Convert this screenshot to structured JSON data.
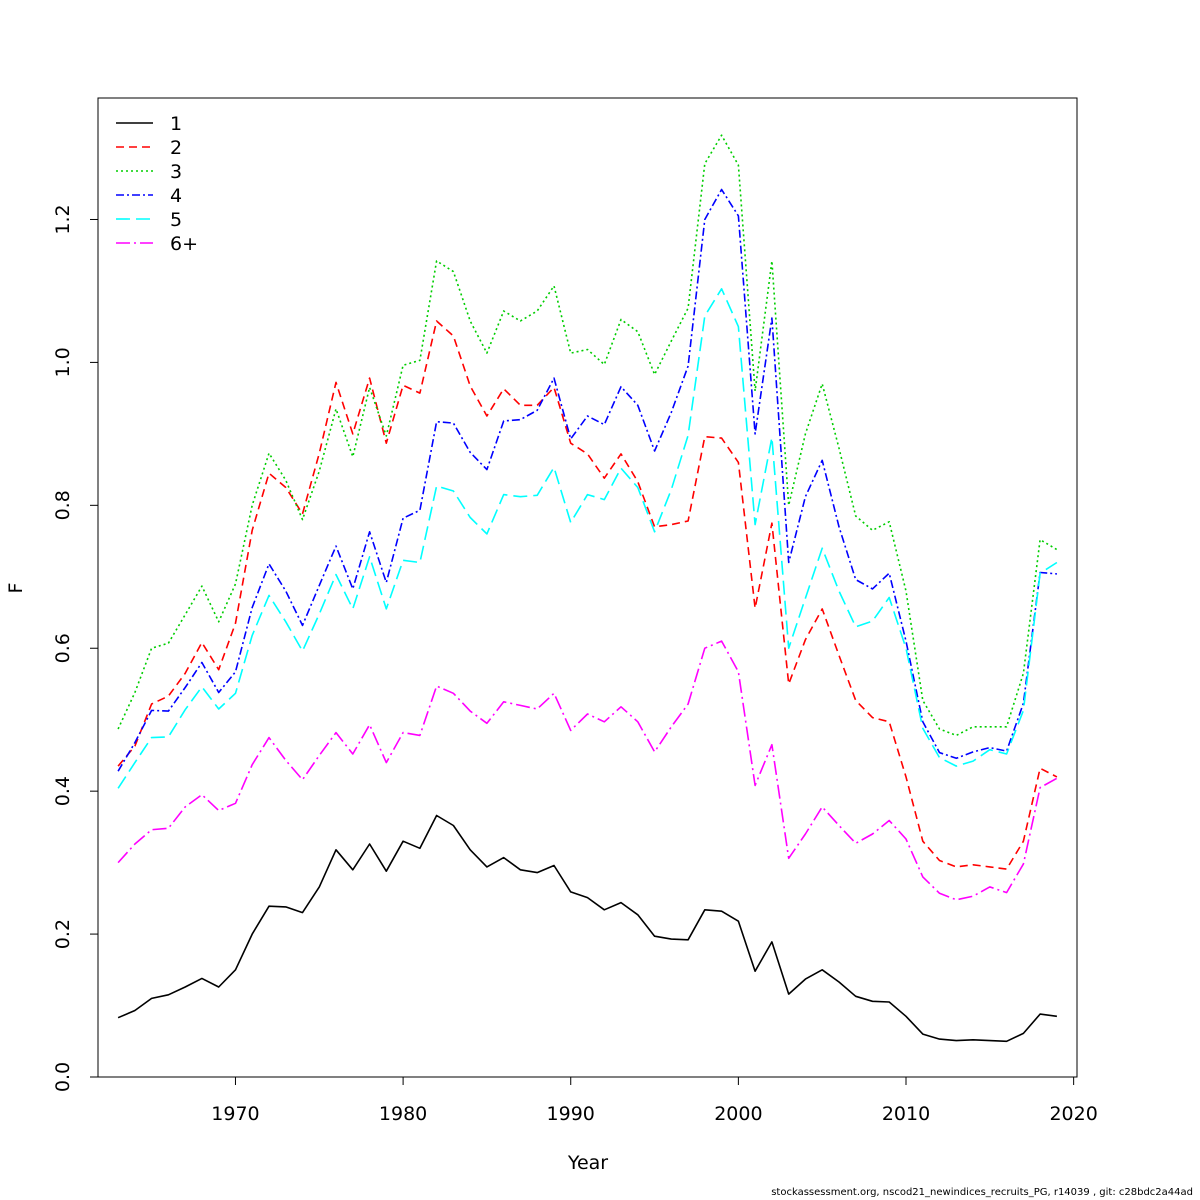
{
  "footer_note": "stockassessment.org, nscod21_newindices_recruits_PG, r14039 , git: c28bdc2a44ad",
  "chart_data": {
    "type": "line",
    "title": "",
    "xlabel": "Year",
    "ylabel": "F",
    "xlim": [
      1961.8,
      2020.2
    ],
    "ylim": [
      0,
      1.37
    ],
    "x_ticks": [
      1970,
      1980,
      1990,
      2000,
      2010,
      2020
    ],
    "y_ticks": [
      0.0,
      0.2,
      0.4,
      0.6,
      0.8,
      1.0,
      1.2
    ],
    "x_tick_labels": [
      "1970",
      "1980",
      "1990",
      "2000",
      "2010",
      "2020"
    ],
    "y_tick_labels": [
      "0.0",
      "0.2",
      "0.4",
      "0.6",
      "0.8",
      "1.0",
      "1.2"
    ],
    "grid": false,
    "legend_position": "top-left",
    "x": [
      1963,
      1964,
      1965,
      1966,
      1967,
      1968,
      1969,
      1970,
      1971,
      1972,
      1973,
      1974,
      1975,
      1976,
      1977,
      1978,
      1979,
      1980,
      1981,
      1982,
      1983,
      1984,
      1985,
      1986,
      1987,
      1988,
      1989,
      1990,
      1991,
      1992,
      1993,
      1994,
      1995,
      1996,
      1997,
      1998,
      1999,
      2000,
      2001,
      2002,
      2003,
      2004,
      2005,
      2006,
      2007,
      2008,
      2009,
      2010,
      2011,
      2012,
      2013,
      2014,
      2015,
      2016,
      2017,
      2018,
      2019
    ],
    "series": [
      {
        "name": "1",
        "color": "#000000",
        "dash": "",
        "values": [
          0.083,
          0.093,
          0.11,
          0.115,
          0.126,
          0.138,
          0.126,
          0.15,
          0.2,
          0.239,
          0.238,
          0.23,
          0.266,
          0.318,
          0.29,
          0.326,
          0.288,
          0.33,
          0.32,
          0.366,
          0.352,
          0.318,
          0.294,
          0.307,
          0.29,
          0.286,
          0.296,
          0.259,
          0.251,
          0.234,
          0.244,
          0.227,
          0.197,
          0.193,
          0.192,
          0.234,
          0.232,
          0.218,
          0.148,
          0.189,
          0.116,
          0.137,
          0.15,
          0.133,
          0.113,
          0.106,
          0.105,
          0.085,
          0.06,
          0.053,
          0.051,
          0.052,
          0.051,
          0.05,
          0.061,
          0.088,
          0.085
        ]
      },
      {
        "name": "2",
        "color": "#ff0000",
        "dash": "8,5",
        "values": [
          0.435,
          0.463,
          0.522,
          0.533,
          0.565,
          0.608,
          0.57,
          0.635,
          0.765,
          0.845,
          0.825,
          0.788,
          0.873,
          0.972,
          0.9,
          0.978,
          0.887,
          0.968,
          0.957,
          1.058,
          1.037,
          0.967,
          0.925,
          0.963,
          0.94,
          0.94,
          0.965,
          0.887,
          0.872,
          0.838,
          0.872,
          0.833,
          0.77,
          0.773,
          0.778,
          0.896,
          0.894,
          0.86,
          0.656,
          0.775,
          0.55,
          0.612,
          0.655,
          0.59,
          0.527,
          0.503,
          0.497,
          0.42,
          0.33,
          0.303,
          0.294,
          0.297,
          0.294,
          0.291,
          0.33,
          0.432,
          0.42
        ]
      },
      {
        "name": "3",
        "color": "#00cd00",
        "dash": "2,3",
        "values": [
          0.487,
          0.538,
          0.6,
          0.607,
          0.647,
          0.687,
          0.637,
          0.69,
          0.8,
          0.873,
          0.835,
          0.78,
          0.848,
          0.935,
          0.868,
          0.965,
          0.897,
          0.996,
          1.003,
          1.142,
          1.127,
          1.058,
          1.013,
          1.072,
          1.058,
          1.072,
          1.107,
          1.013,
          1.018,
          0.997,
          1.06,
          1.043,
          0.983,
          1.03,
          1.076,
          1.278,
          1.318,
          1.276,
          0.96,
          1.142,
          0.8,
          0.9,
          0.97,
          0.88,
          0.785,
          0.765,
          0.777,
          0.68,
          0.527,
          0.487,
          0.478,
          0.49,
          0.49,
          0.49,
          0.565,
          0.752,
          0.738
        ]
      },
      {
        "name": "4",
        "color": "#0000ff",
        "dash": "8,3,2,3",
        "values": [
          0.428,
          0.468,
          0.513,
          0.512,
          0.545,
          0.58,
          0.538,
          0.567,
          0.657,
          0.718,
          0.68,
          0.632,
          0.688,
          0.743,
          0.683,
          0.763,
          0.692,
          0.782,
          0.793,
          0.917,
          0.915,
          0.874,
          0.85,
          0.918,
          0.92,
          0.933,
          0.978,
          0.893,
          0.925,
          0.913,
          0.966,
          0.94,
          0.876,
          0.93,
          0.995,
          1.2,
          1.242,
          1.205,
          0.9,
          1.062,
          0.72,
          0.812,
          0.863,
          0.77,
          0.696,
          0.683,
          0.705,
          0.61,
          0.497,
          0.454,
          0.446,
          0.455,
          0.461,
          0.456,
          0.523,
          0.706,
          0.704
        ]
      },
      {
        "name": "5",
        "color": "#00ffff",
        "dash": "14,6",
        "values": [
          0.404,
          0.44,
          0.475,
          0.476,
          0.514,
          0.546,
          0.515,
          0.537,
          0.618,
          0.674,
          0.637,
          0.596,
          0.648,
          0.703,
          0.655,
          0.728,
          0.655,
          0.723,
          0.72,
          0.827,
          0.82,
          0.783,
          0.76,
          0.815,
          0.812,
          0.814,
          0.853,
          0.776,
          0.815,
          0.808,
          0.852,
          0.825,
          0.763,
          0.822,
          0.898,
          1.065,
          1.103,
          1.05,
          0.773,
          0.895,
          0.6,
          0.67,
          0.74,
          0.68,
          0.63,
          0.638,
          0.671,
          0.6,
          0.488,
          0.447,
          0.435,
          0.442,
          0.458,
          0.452,
          0.513,
          0.705,
          0.72
        ]
      },
      {
        "name": "6+",
        "color": "#ff00ff",
        "dash": "14,4,2,4",
        "values": [
          0.3,
          0.326,
          0.346,
          0.348,
          0.378,
          0.395,
          0.373,
          0.383,
          0.437,
          0.475,
          0.443,
          0.416,
          0.45,
          0.482,
          0.452,
          0.493,
          0.44,
          0.482,
          0.478,
          0.547,
          0.537,
          0.512,
          0.495,
          0.525,
          0.52,
          0.515,
          0.537,
          0.485,
          0.508,
          0.497,
          0.518,
          0.497,
          0.455,
          0.49,
          0.522,
          0.6,
          0.61,
          0.567,
          0.408,
          0.465,
          0.306,
          0.34,
          0.378,
          0.352,
          0.327,
          0.34,
          0.359,
          0.333,
          0.28,
          0.257,
          0.248,
          0.253,
          0.266,
          0.258,
          0.298,
          0.405,
          0.418
        ]
      }
    ]
  }
}
